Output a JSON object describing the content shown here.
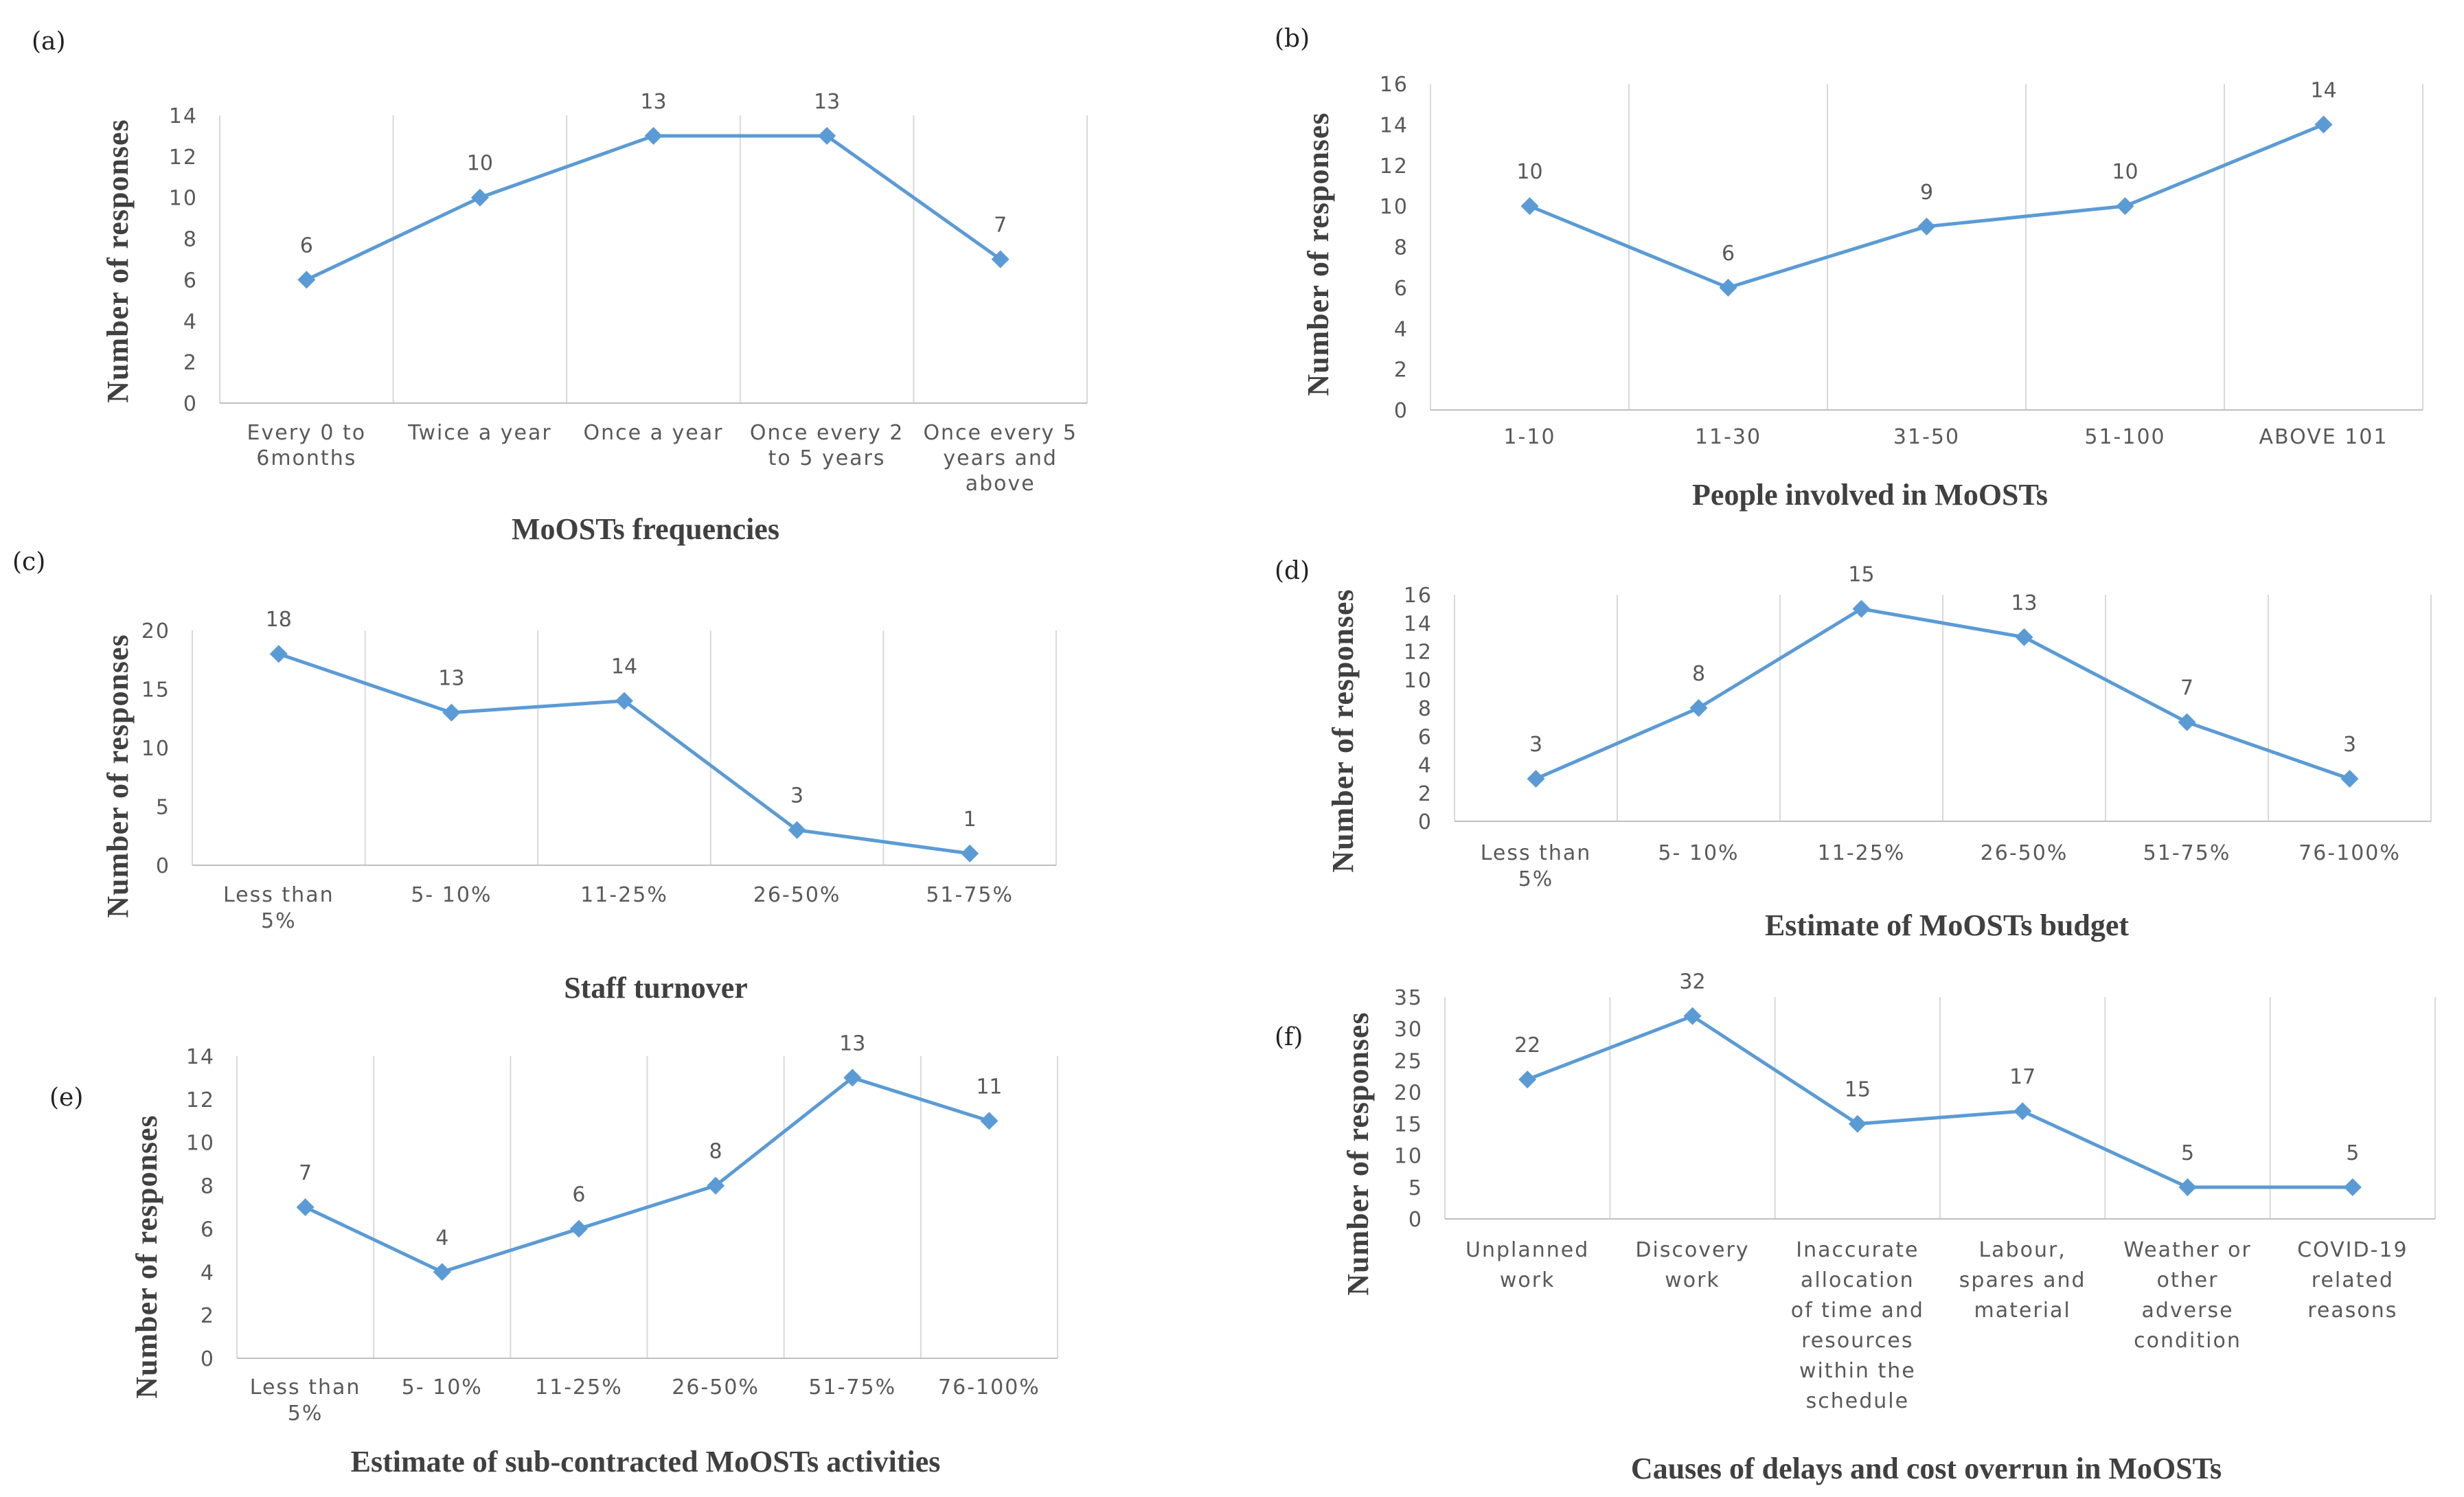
{
  "series_color": "#5b9bd5",
  "chart_data": [
    {
      "panel": "(a)",
      "type": "line",
      "categories": [
        "Every 0 to 6months",
        "Twice a year",
        "Once a year",
        "Once every 2 to 5 years",
        "Once every 5 years and above"
      ],
      "values": [
        6,
        10,
        13,
        13,
        7
      ],
      "xlabel": "MoOSTs frequencies",
      "ylabel": "Number of responses",
      "ylim": [
        0,
        14
      ],
      "yticks": [
        0,
        2,
        4,
        6,
        8,
        10,
        12,
        14
      ]
    },
    {
      "panel": "(b)",
      "type": "line",
      "categories": [
        "1-10",
        "11-30",
        "31-50",
        "51-100",
        "ABOVE 101"
      ],
      "values": [
        10,
        6,
        9,
        10,
        14
      ],
      "xlabel": "People involved in MoOSTs",
      "ylabel": "Number of responses",
      "ylim": [
        0,
        16
      ],
      "yticks": [
        0,
        2,
        4,
        6,
        8,
        10,
        12,
        14,
        16
      ]
    },
    {
      "panel": "(c)",
      "type": "line",
      "categories": [
        "Less than 5%",
        "5- 10%",
        "11-25%",
        "26-50%",
        "51-75%"
      ],
      "values": [
        18,
        13,
        14,
        3,
        1
      ],
      "xlabel": "Staff turnover",
      "ylabel": "Number of responses",
      "ylim": [
        0,
        20
      ],
      "yticks": [
        0,
        5,
        10,
        15,
        20
      ]
    },
    {
      "panel": "(d)",
      "type": "line",
      "categories": [
        "Less than 5%",
        "5- 10%",
        "11-25%",
        "26-50%",
        "51-75%",
        "76-100%"
      ],
      "values": [
        3,
        8,
        15,
        13,
        7,
        3
      ],
      "xlabel": "Estimate of MoOSTs budget",
      "ylabel": "Number of responses",
      "ylim": [
        0,
        16
      ],
      "yticks": [
        0,
        2,
        4,
        6,
        8,
        10,
        12,
        14,
        16
      ]
    },
    {
      "panel": "(e)",
      "type": "line",
      "categories": [
        "Less than 5%",
        "5- 10%",
        "11-25%",
        "26-50%",
        "51-75%",
        "76-100%"
      ],
      "values": [
        7,
        4,
        6,
        8,
        13,
        11
      ],
      "xlabel": "Estimate of sub-contracted  MoOSTs activities",
      "ylabel": "Number of responses",
      "ylim": [
        0,
        14
      ],
      "yticks": [
        0,
        2,
        4,
        6,
        8,
        10,
        12,
        14
      ]
    },
    {
      "panel": "(f)",
      "type": "line",
      "categories": [
        "Unplanned work",
        "Discovery work",
        "Inaccurate allocation of time and resources within the schedule",
        "Labour, spares and material",
        "Weather or other adverse condition",
        "COVID-19 related reasons"
      ],
      "values": [
        22,
        32,
        15,
        17,
        5,
        5
      ],
      "xlabel": "Causes of delays and cost overrun  in MoOSTs",
      "ylabel": "Number of responses",
      "ylim": [
        0,
        35
      ],
      "yticks": [
        0,
        5,
        10,
        15,
        20,
        25,
        30,
        35
      ]
    }
  ]
}
